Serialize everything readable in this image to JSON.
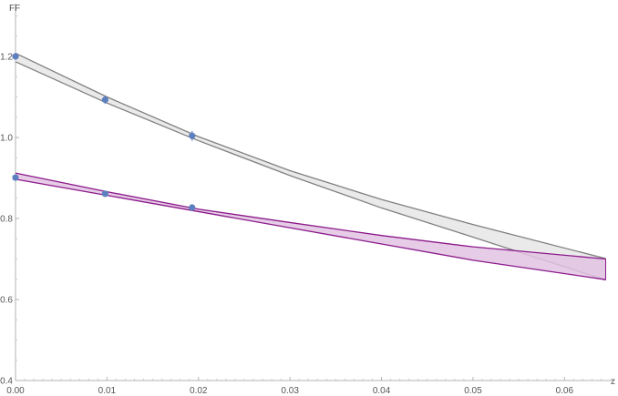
{
  "chart_data": {
    "type": "line",
    "xlabel": "z",
    "ylabel": "FF",
    "xlim": [
      0,
      0.065
    ],
    "ylim": [
      0.4,
      1.3
    ],
    "x_ticks": [
      "0.00",
      "0.01",
      "0.02",
      "0.03",
      "0.04",
      "0.05",
      "0.06"
    ],
    "y_ticks": [
      "0.4",
      "0.6",
      "0.8",
      "1.0",
      "1.2"
    ],
    "grid": false,
    "bands": [
      {
        "color": "#808080",
        "fill": "#e6e6e6",
        "upper": [
          [
            0,
            1.208
          ],
          [
            0.01,
            1.1
          ],
          [
            0.02,
            1.002
          ],
          [
            0.03,
            0.918
          ],
          [
            0.04,
            0.847
          ],
          [
            0.05,
            0.785
          ],
          [
            0.0645,
            0.701
          ]
        ],
        "lower": [
          [
            0,
            1.187
          ],
          [
            0.01,
            1.085
          ],
          [
            0.02,
            0.992
          ],
          [
            0.03,
            0.906
          ],
          [
            0.04,
            0.826
          ],
          [
            0.05,
            0.754
          ],
          [
            0.0645,
            0.648
          ]
        ]
      },
      {
        "color": "#8b1a8b",
        "fill": "#e2c3e2",
        "upper": [
          [
            0,
            0.912
          ],
          [
            0.01,
            0.866
          ],
          [
            0.02,
            0.823
          ],
          [
            0.03,
            0.79
          ],
          [
            0.04,
            0.758
          ],
          [
            0.05,
            0.73
          ],
          [
            0.0645,
            0.7
          ]
        ],
        "lower": [
          [
            0,
            0.897
          ],
          [
            0.01,
            0.857
          ],
          [
            0.02,
            0.817
          ],
          [
            0.03,
            0.777
          ],
          [
            0.04,
            0.737
          ],
          [
            0.05,
            0.697
          ],
          [
            0.0645,
            0.649
          ]
        ]
      }
    ],
    "points": [
      {
        "color": "#5b7fbf",
        "x": [
          0,
          0.0098,
          0.0193
        ],
        "y": [
          1.2,
          1.093,
          1.004
        ],
        "err": [
          0.008,
          0.01,
          0.012
        ]
      },
      {
        "color": "#5b7fbf",
        "x": [
          0,
          0.0098,
          0.0193
        ],
        "y": [
          0.901,
          0.861,
          0.827
        ],
        "err": [
          0.006,
          0.007,
          0.008
        ]
      }
    ]
  }
}
